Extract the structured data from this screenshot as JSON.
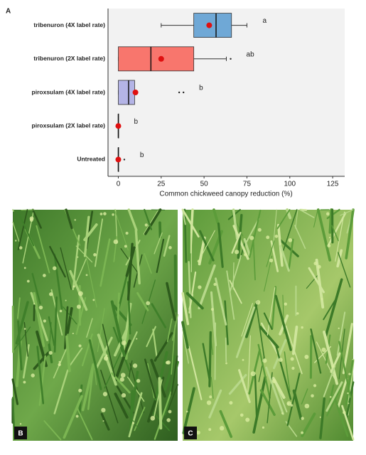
{
  "chart_data": {
    "type": "box",
    "panel_label": "A",
    "xlabel": "Common chickweed canopy reduction (%)",
    "categories": [
      "tribenuron (4X label rate)",
      "tribenuron (2X label rate)",
      "piroxsulam (4X label rate)",
      "piroxsulam (2X label rate)",
      "Untreated"
    ],
    "colors": [
      "#6fa8d6",
      "#f8766d",
      "#b4b4e6",
      "#9fd89f",
      "#c8c8c8"
    ],
    "q1": [
      44,
      0,
      0,
      0,
      0
    ],
    "median": [
      57,
      19,
      6,
      0,
      0
    ],
    "q3": [
      66,
      44,
      9.5,
      0,
      0
    ],
    "whisker_low": [
      25,
      0,
      0,
      0,
      0
    ],
    "whisker_high": [
      75,
      63,
      9.5,
      0,
      0
    ],
    "mean": [
      53,
      25,
      10,
      0,
      0
    ],
    "outliers": [
      [],
      [
        65.5
      ],
      [
        35.5,
        38
      ],
      [],
      [
        3.5
      ]
    ],
    "letters": [
      "a",
      "ab",
      "b",
      "b",
      "b"
    ],
    "xlim": [
      -6,
      132
    ],
    "xticks": [
      0,
      25,
      50,
      75,
      100,
      125
    ]
  },
  "photos": {
    "b": {
      "label": "B"
    },
    "c": {
      "label": "C"
    }
  }
}
